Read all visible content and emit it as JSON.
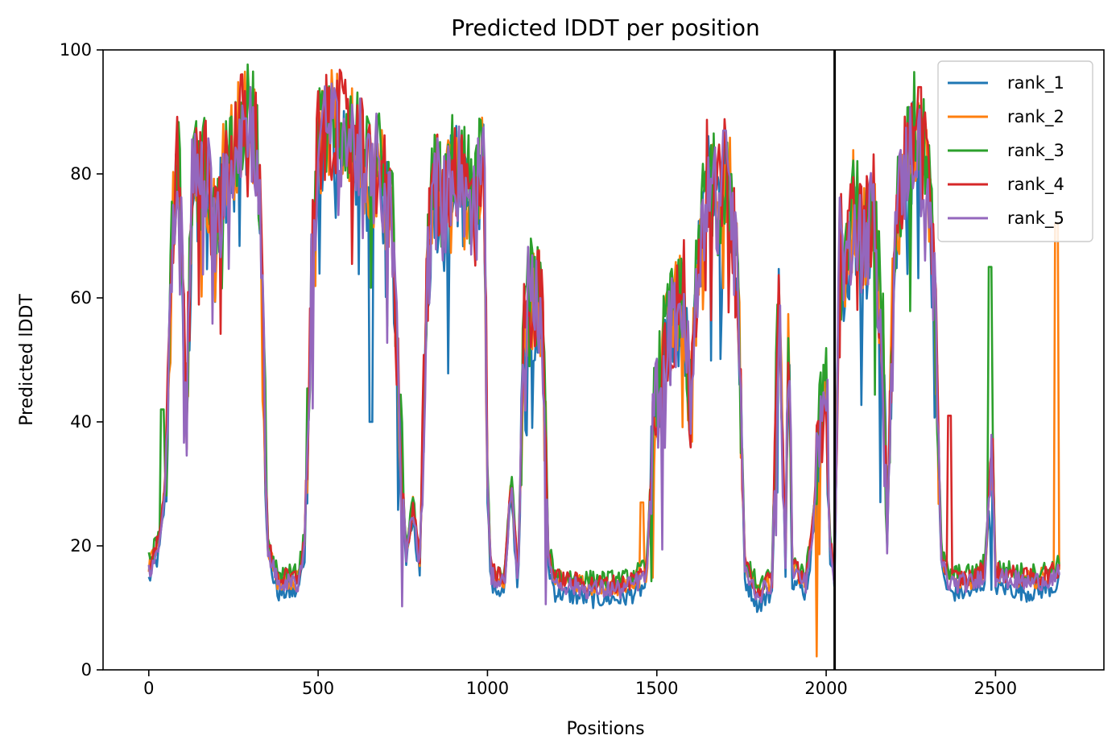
{
  "chart_data": {
    "type": "line",
    "title": "Predicted lDDT per position",
    "xlabel": "Positions",
    "ylabel": "Predicted lDDT",
    "xlim": [
      -135,
      2820
    ],
    "ylim": [
      0,
      100
    ],
    "xticks": [
      0,
      500,
      1000,
      1500,
      2000,
      2500
    ],
    "yticks": [
      0,
      20,
      40,
      60,
      80,
      100
    ],
    "grid": false,
    "legend_position": "top-right",
    "chain_break_x": 2025,
    "series": [
      {
        "name": "rank_1",
        "color": "#1f77b4"
      },
      {
        "name": "rank_2",
        "color": "#ff7f0e"
      },
      {
        "name": "rank_3",
        "color": "#2ca02c"
      },
      {
        "name": "rank_4",
        "color": "#d62728"
      },
      {
        "name": "rank_5",
        "color": "#9467bd"
      }
    ],
    "profile": [
      [
        0,
        16
      ],
      [
        30,
        20
      ],
      [
        50,
        30
      ],
      [
        70,
        72
      ],
      [
        90,
        84
      ],
      [
        110,
        38
      ],
      [
        130,
        82
      ],
      [
        150,
        78
      ],
      [
        170,
        80
      ],
      [
        200,
        68
      ],
      [
        220,
        80
      ],
      [
        250,
        84
      ],
      [
        280,
        88
      ],
      [
        300,
        88
      ],
      [
        320,
        84
      ],
      [
        335,
        62
      ],
      [
        350,
        20
      ],
      [
        380,
        14
      ],
      [
        440,
        14
      ],
      [
        460,
        20
      ],
      [
        480,
        62
      ],
      [
        500,
        84
      ],
      [
        520,
        86
      ],
      [
        550,
        88
      ],
      [
        580,
        86
      ],
      [
        620,
        84
      ],
      [
        650,
        78
      ],
      [
        680,
        82
      ],
      [
        720,
        70
      ],
      [
        740,
        40
      ],
      [
        760,
        18
      ],
      [
        780,
        26
      ],
      [
        800,
        17
      ],
      [
        820,
        60
      ],
      [
        840,
        80
      ],
      [
        870,
        74
      ],
      [
        900,
        82
      ],
      [
        930,
        78
      ],
      [
        960,
        74
      ],
      [
        990,
        84
      ],
      [
        1000,
        30
      ],
      [
        1010,
        15
      ],
      [
        1050,
        14
      ],
      [
        1070,
        30
      ],
      [
        1090,
        14
      ],
      [
        1110,
        60
      ],
      [
        1140,
        60
      ],
      [
        1160,
        58
      ],
      [
        1180,
        18
      ],
      [
        1200,
        14
      ],
      [
        1300,
        13
      ],
      [
        1400,
        13
      ],
      [
        1470,
        15
      ],
      [
        1490,
        40
      ],
      [
        1520,
        50
      ],
      [
        1550,
        56
      ],
      [
        1580,
        60
      ],
      [
        1600,
        40
      ],
      [
        1620,
        65
      ],
      [
        1650,
        80
      ],
      [
        1680,
        74
      ],
      [
        1710,
        82
      ],
      [
        1740,
        60
      ],
      [
        1760,
        16
      ],
      [
        1800,
        12
      ],
      [
        1840,
        14
      ],
      [
        1860,
        60
      ],
      [
        1880,
        18
      ],
      [
        1890,
        60
      ],
      [
        1900,
        16
      ],
      [
        1940,
        14
      ],
      [
        1960,
        22
      ],
      [
        2000,
        50
      ],
      [
        2010,
        20
      ],
      [
        2025,
        15
      ],
      [
        2040,
        72
      ],
      [
        2060,
        62
      ],
      [
        2080,
        76
      ],
      [
        2110,
        68
      ],
      [
        2140,
        74
      ],
      [
        2170,
        50
      ],
      [
        2180,
        20
      ],
      [
        2200,
        70
      ],
      [
        2230,
        80
      ],
      [
        2260,
        86
      ],
      [
        2300,
        80
      ],
      [
        2320,
        60
      ],
      [
        2340,
        18
      ],
      [
        2360,
        14
      ],
      [
        2400,
        14
      ],
      [
        2440,
        14
      ],
      [
        2470,
        16
      ],
      [
        2490,
        40
      ],
      [
        2500,
        15
      ],
      [
        2600,
        14
      ],
      [
        2680,
        15
      ],
      [
        2690,
        16
      ]
    ],
    "series_offsets": [
      -1.5,
      0.5,
      1.5,
      0.8,
      0.0
    ],
    "spikes": [
      {
        "series": 1,
        "x": 2680,
        "y": 72
      },
      {
        "series": 2,
        "x": 2485,
        "y": 65
      },
      {
        "series": 3,
        "x": 2365,
        "y": 41
      },
      {
        "series": 1,
        "x": 1455,
        "y": 27
      },
      {
        "series": 2,
        "x": 40,
        "y": 42
      },
      {
        "series": 0,
        "x": 655,
        "y": 40
      },
      {
        "series": 4,
        "x": 1700,
        "y": 87
      },
      {
        "series": 3,
        "x": 2275,
        "y": 94
      }
    ]
  }
}
